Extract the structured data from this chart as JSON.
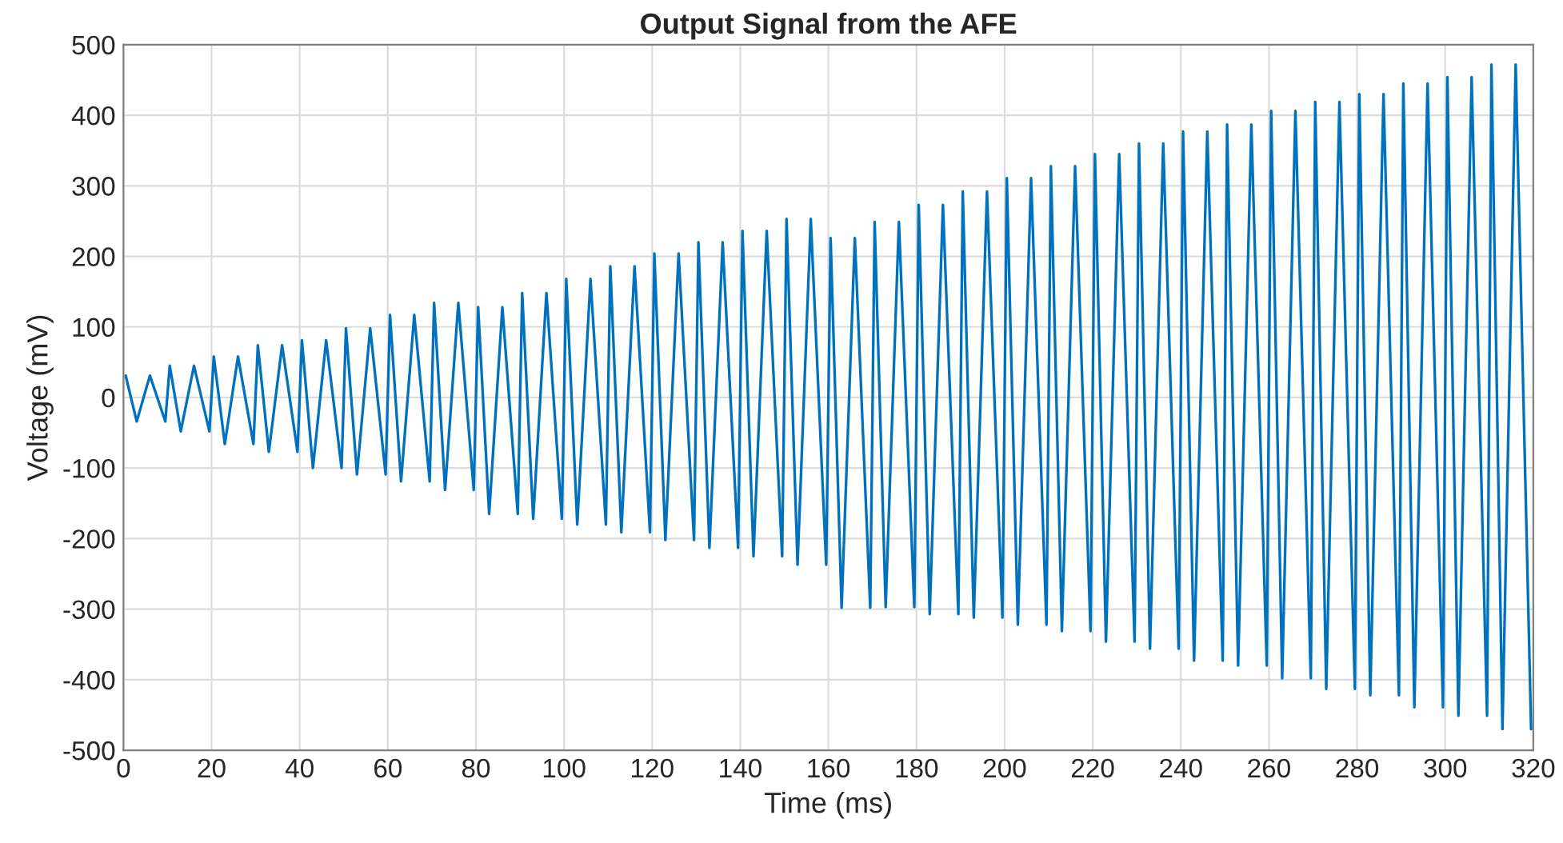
{
  "chart_data": {
    "type": "line",
    "title": "Output Signal from the AFE",
    "xlabel": "Time (ms)",
    "ylabel": "Voltage (mV)",
    "xlim": [
      0,
      320
    ],
    "xticks": [
      0,
      20,
      40,
      60,
      80,
      100,
      120,
      140,
      160,
      180,
      200,
      220,
      240,
      260,
      280,
      300,
      320
    ],
    "ylim": [
      -500,
      500
    ],
    "yticks": [
      -500,
      -400,
      -300,
      -200,
      -100,
      0,
      100,
      200,
      300,
      400,
      500
    ],
    "grid": true,
    "marker": "none",
    "line_style": "solid",
    "series": [
      {
        "color": "#0072bd",
        "x": [
          0.5,
          3,
          6,
          9.5,
          10.5,
          13,
          16,
          19.5,
          20.5,
          23,
          26,
          29.5,
          30.5,
          33,
          36,
          39.5,
          40.5,
          43,
          46,
          49.5,
          50.5,
          53,
          56,
          59.5,
          60.5,
          63,
          66,
          69.5,
          70.5,
          73,
          76,
          79.5,
          80.5,
          83,
          86,
          89.5,
          90.5,
          93,
          96,
          99.5,
          100.5,
          103,
          106,
          109.5,
          110.5,
          113,
          116,
          119.5,
          120.5,
          123,
          126,
          129.5,
          130.5,
          133,
          136,
          139.5,
          140.5,
          143,
          146,
          149.5,
          150.5,
          153,
          156,
          159.5,
          160.5,
          163,
          166,
          169.5,
          170.5,
          173,
          176,
          179.5,
          180.5,
          183,
          186,
          189.5,
          190.5,
          193,
          196,
          199.5,
          200.5,
          203,
          206,
          209.5,
          210.5,
          213,
          216,
          219.5,
          220.5,
          223,
          226,
          229.5,
          230.5,
          233,
          236,
          239.5,
          240.5,
          243,
          246,
          249.5,
          250.5,
          253,
          256,
          259.5,
          260.5,
          263,
          266,
          269.5,
          270.5,
          273,
          276,
          279.5,
          280.5,
          283,
          286,
          289.5,
          290.5,
          293,
          296,
          299.5,
          300.5,
          303,
          306,
          309.5,
          310.5,
          313,
          316,
          319.5
        ],
        "values": [
          31,
          -34,
          31,
          -34,
          45,
          -48,
          45,
          -48,
          58,
          -66,
          58,
          -66,
          74,
          -77,
          74,
          -77,
          81,
          -100,
          81,
          -100,
          98,
          -109,
          98,
          -109,
          117,
          -119,
          117,
          -119,
          134,
          -131,
          134,
          -131,
          128,
          -165,
          128,
          -165,
          148,
          -172,
          148,
          -172,
          168,
          -180,
          168,
          -180,
          186,
          -191,
          186,
          -191,
          204,
          -202,
          204,
          -202,
          220,
          -213,
          220,
          -213,
          236,
          -225,
          236,
          -225,
          253,
          -237,
          253,
          -237,
          226,
          -298,
          226,
          -298,
          249,
          -297,
          249,
          -297,
          273,
          -307,
          273,
          -307,
          292,
          -312,
          292,
          -312,
          311,
          -322,
          311,
          -322,
          328,
          -331,
          328,
          -331,
          345,
          -346,
          345,
          -346,
          360,
          -356,
          360,
          -356,
          377,
          -373,
          377,
          -373,
          387,
          -380,
          387,
          -380,
          406,
          -398,
          406,
          -398,
          419,
          -413,
          419,
          -413,
          430,
          -422,
          430,
          -422,
          445,
          -439,
          445,
          -439,
          454,
          -451,
          454,
          -451,
          472,
          -470,
          472,
          -470
        ]
      }
    ]
  }
}
